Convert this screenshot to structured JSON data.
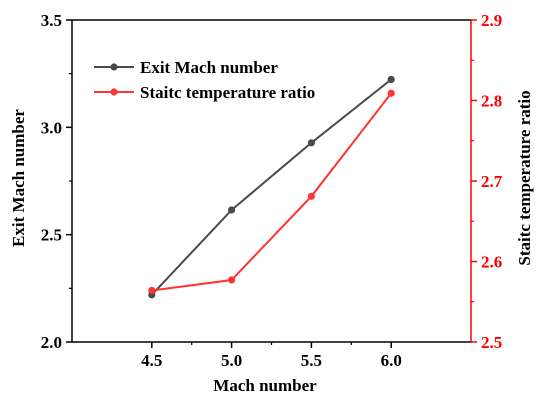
{
  "chart_data": {
    "type": "line",
    "x": [
      4.5,
      5.0,
      5.5,
      6.0
    ],
    "x_tick_labels": [
      "4.5",
      "5.0",
      "5.5",
      "6.0"
    ],
    "xlabel": "Mach number",
    "xlim": [
      4.0,
      6.5
    ],
    "y_left": {
      "label": "Exit Mach number",
      "range": [
        2.0,
        3.5
      ],
      "ticks": [
        2.0,
        2.5,
        3.0,
        3.5
      ],
      "tick_labels": [
        "2.0",
        "2.5",
        "3.0",
        "3.5"
      ],
      "color": "#000000"
    },
    "y_right": {
      "label": "Staitc temperature ratio",
      "range": [
        2.5,
        2.9
      ],
      "ticks": [
        2.5,
        2.6,
        2.7,
        2.8,
        2.9
      ],
      "tick_labels": [
        "2.5",
        "2.6",
        "2.7",
        "2.8",
        "2.9"
      ],
      "color": "#ff0000"
    },
    "series": [
      {
        "name": "Exit Mach number",
        "axis": "left",
        "color": "#4a4a4a",
        "values": [
          2.22,
          2.615,
          2.928,
          3.223
        ]
      },
      {
        "name": "Staitc temperature ratio",
        "axis": "right",
        "color": "#ff3333",
        "values": [
          2.564,
          2.577,
          2.681,
          2.809
        ]
      }
    ],
    "legend_position": "top-left",
    "grid": false
  }
}
